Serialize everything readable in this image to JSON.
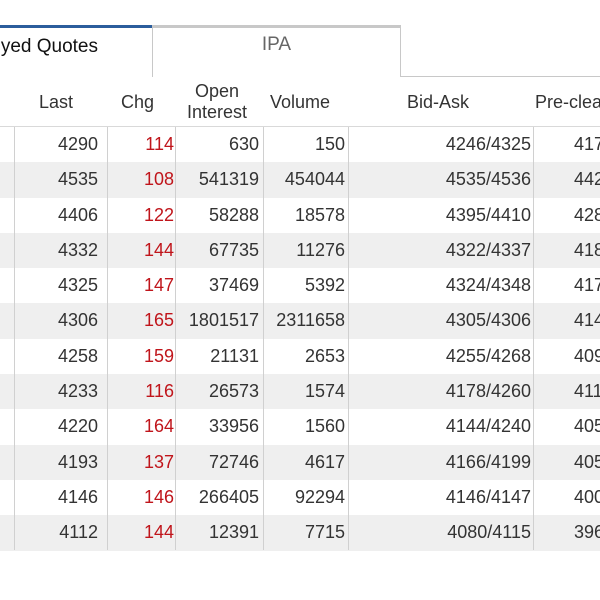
{
  "tabs": [
    {
      "label": "yed Quotes",
      "active": true
    },
    {
      "label": "IPA",
      "active": false
    }
  ],
  "columns": [
    "Last",
    "Chg",
    "Open\nInterest",
    "Volume",
    "Bid-Ask",
    "Pre-clea"
  ],
  "column_lines": [
    "Open",
    "Interest"
  ],
  "rows": [
    {
      "last": "4290",
      "chg": "114",
      "open_interest": "630",
      "volume": "150",
      "bid_ask": "4246/4325",
      "pre_clear": "417"
    },
    {
      "last": "4535",
      "chg": "108",
      "open_interest": "541319",
      "volume": "454044",
      "bid_ask": "4535/4536",
      "pre_clear": "442"
    },
    {
      "last": "4406",
      "chg": "122",
      "open_interest": "58288",
      "volume": "18578",
      "bid_ask": "4395/4410",
      "pre_clear": "428"
    },
    {
      "last": "4332",
      "chg": "144",
      "open_interest": "67735",
      "volume": "11276",
      "bid_ask": "4322/4337",
      "pre_clear": "418"
    },
    {
      "last": "4325",
      "chg": "147",
      "open_interest": "37469",
      "volume": "5392",
      "bid_ask": "4324/4348",
      "pre_clear": "417"
    },
    {
      "last": "4306",
      "chg": "165",
      "open_interest": "1801517",
      "volume": "2311658",
      "bid_ask": "4305/4306",
      "pre_clear": "414"
    },
    {
      "last": "4258",
      "chg": "159",
      "open_interest": "21131",
      "volume": "2653",
      "bid_ask": "4255/4268",
      "pre_clear": "409"
    },
    {
      "last": "4233",
      "chg": "116",
      "open_interest": "26573",
      "volume": "1574",
      "bid_ask": "4178/4260",
      "pre_clear": "411"
    },
    {
      "last": "4220",
      "chg": "164",
      "open_interest": "33956",
      "volume": "1560",
      "bid_ask": "4144/4240",
      "pre_clear": "405"
    },
    {
      "last": "4193",
      "chg": "137",
      "open_interest": "72746",
      "volume": "4617",
      "bid_ask": "4166/4199",
      "pre_clear": "405"
    },
    {
      "last": "4146",
      "chg": "146",
      "open_interest": "266405",
      "volume": "92294",
      "bid_ask": "4146/4147",
      "pre_clear": "400"
    },
    {
      "last": "4112",
      "chg": "144",
      "open_interest": "12391",
      "volume": "7715",
      "bid_ask": "4080/4115",
      "pre_clear": "396"
    }
  ],
  "colors": {
    "accent": "#2b5d9c",
    "change": "#c0151b",
    "row_alt": "#efefef"
  }
}
